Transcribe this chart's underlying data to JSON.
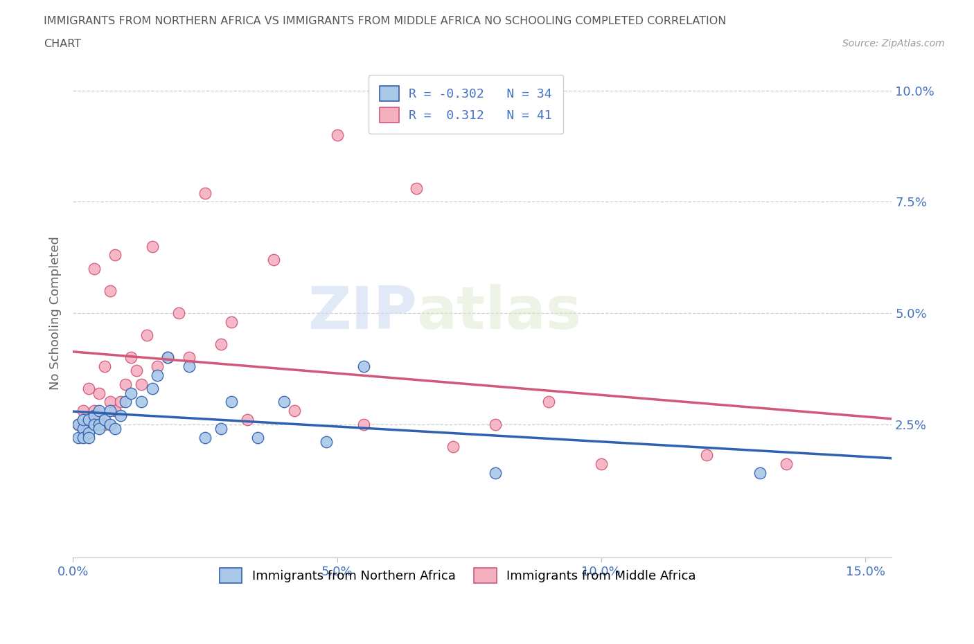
{
  "title_line1": "IMMIGRANTS FROM NORTHERN AFRICA VS IMMIGRANTS FROM MIDDLE AFRICA NO SCHOOLING COMPLETED CORRELATION",
  "title_line2": "CHART",
  "source": "Source: ZipAtlas.com",
  "ylabel": "No Schooling Completed",
  "watermark_top": "ZIP",
  "watermark_bot": "atlas",
  "blue_R": -0.302,
  "blue_N": 34,
  "pink_R": 0.312,
  "pink_N": 41,
  "blue_color": "#aac8e8",
  "pink_color": "#f5b0c0",
  "blue_line_color": "#3060b0",
  "pink_line_color": "#d05878",
  "title_color": "#555555",
  "axis_label_color": "#4472c4",
  "legend_R_color": "#4472c4",
  "xlim": [
    0.0,
    0.155
  ],
  "ylim": [
    -0.005,
    0.105
  ],
  "xtick_vals": [
    0.0,
    0.05,
    0.1,
    0.15
  ],
  "ytick_vals": [
    0.025,
    0.05,
    0.075,
    0.1
  ],
  "blue_x": [
    0.001,
    0.001,
    0.002,
    0.002,
    0.002,
    0.003,
    0.003,
    0.003,
    0.004,
    0.004,
    0.005,
    0.005,
    0.005,
    0.006,
    0.007,
    0.007,
    0.008,
    0.009,
    0.01,
    0.011,
    0.013,
    0.015,
    0.016,
    0.018,
    0.022,
    0.025,
    0.028,
    0.03,
    0.035,
    0.04,
    0.048,
    0.055,
    0.08,
    0.13
  ],
  "blue_y": [
    0.025,
    0.022,
    0.024,
    0.026,
    0.022,
    0.023,
    0.026,
    0.022,
    0.027,
    0.025,
    0.025,
    0.028,
    0.024,
    0.026,
    0.025,
    0.028,
    0.024,
    0.027,
    0.03,
    0.032,
    0.03,
    0.033,
    0.036,
    0.04,
    0.038,
    0.022,
    0.024,
    0.03,
    0.022,
    0.03,
    0.021,
    0.038,
    0.014,
    0.014
  ],
  "pink_x": [
    0.001,
    0.002,
    0.002,
    0.003,
    0.003,
    0.004,
    0.004,
    0.005,
    0.005,
    0.006,
    0.006,
    0.007,
    0.007,
    0.008,
    0.008,
    0.009,
    0.01,
    0.011,
    0.012,
    0.013,
    0.014,
    0.015,
    0.016,
    0.018,
    0.02,
    0.022,
    0.025,
    0.028,
    0.03,
    0.033,
    0.038,
    0.042,
    0.05,
    0.055,
    0.065,
    0.072,
    0.08,
    0.09,
    0.1,
    0.12,
    0.135
  ],
  "pink_y": [
    0.025,
    0.024,
    0.028,
    0.026,
    0.033,
    0.028,
    0.06,
    0.027,
    0.032,
    0.025,
    0.038,
    0.03,
    0.055,
    0.028,
    0.063,
    0.03,
    0.034,
    0.04,
    0.037,
    0.034,
    0.045,
    0.065,
    0.038,
    0.04,
    0.05,
    0.04,
    0.077,
    0.043,
    0.048,
    0.026,
    0.062,
    0.028,
    0.09,
    0.025,
    0.078,
    0.02,
    0.025,
    0.03,
    0.016,
    0.018,
    0.016
  ]
}
